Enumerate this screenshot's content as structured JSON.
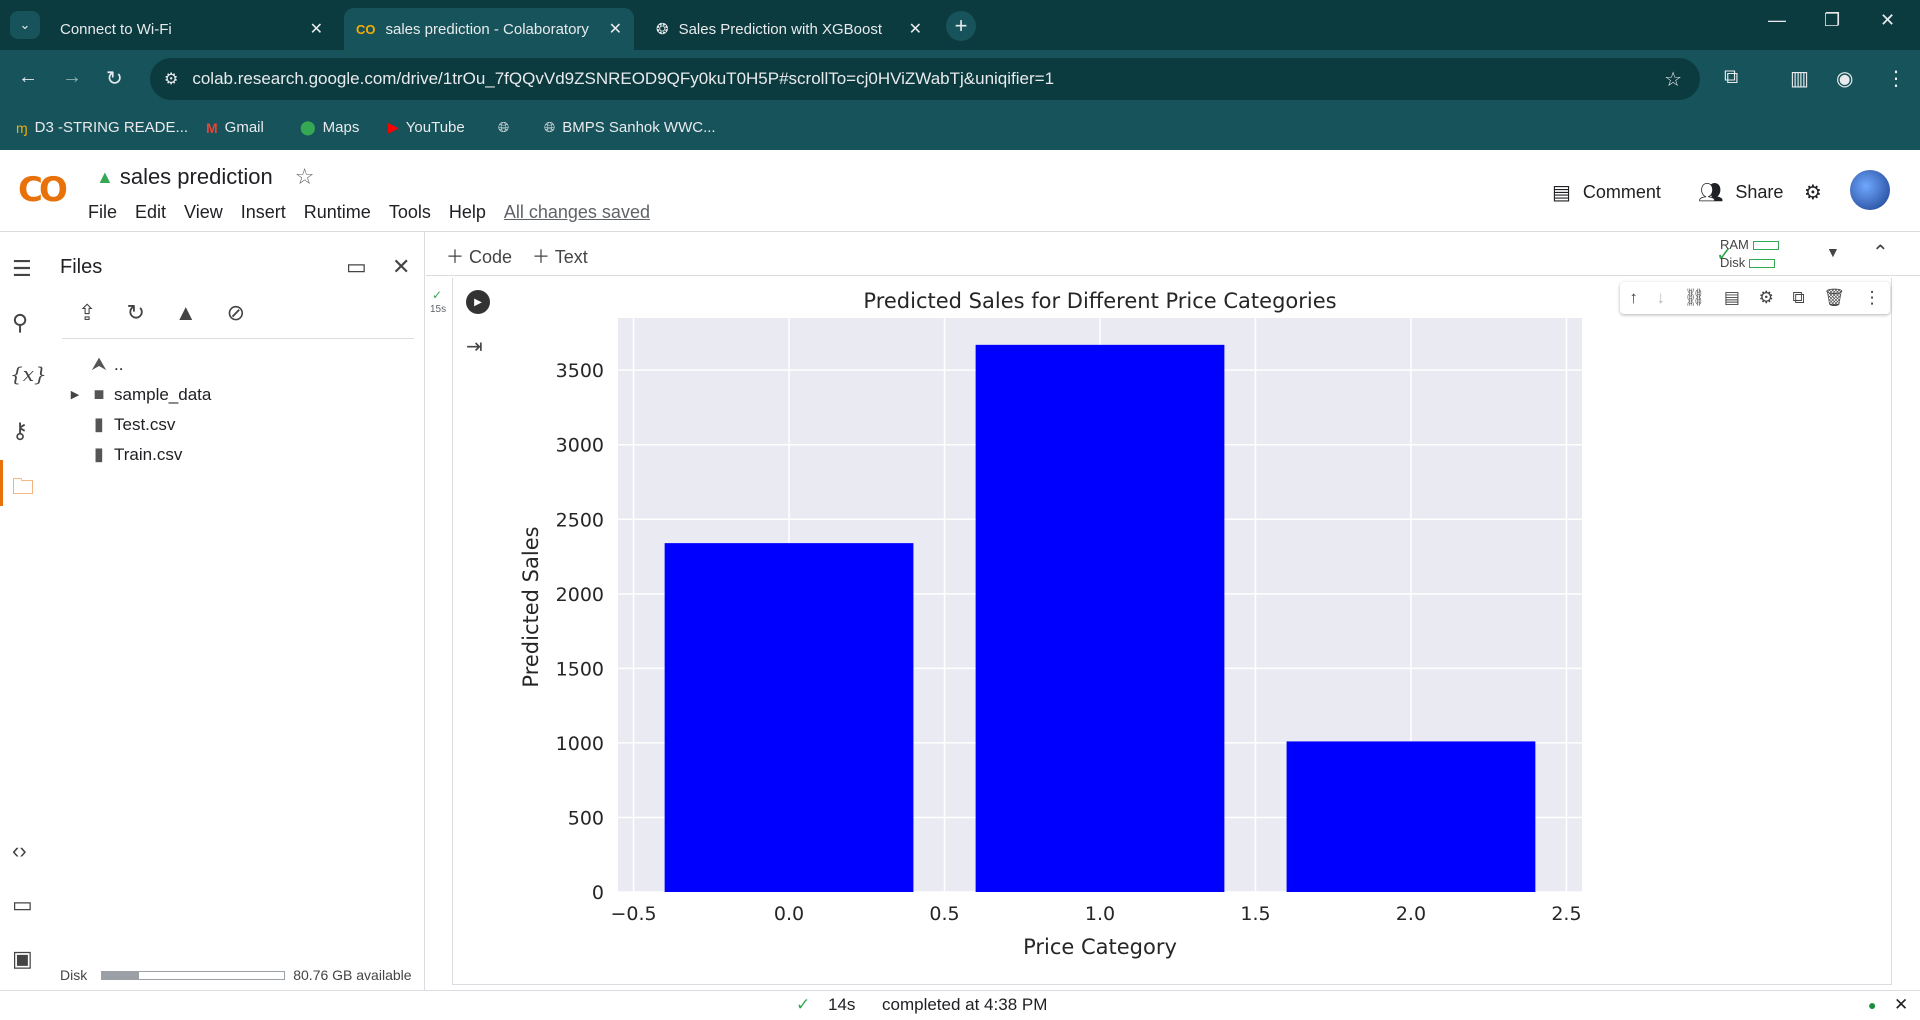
{
  "browser": {
    "tabs": [
      {
        "title": "Connect to Wi-Fi"
      },
      {
        "title": "sales prediction - Colaboratory"
      },
      {
        "title": "Sales Prediction with XGBoost"
      }
    ],
    "url": "colab.research.google.com/drive/1trOu_7fQQvVd9ZSNREOD9QFy0kuT0H5P#scrollTo=cj0HViZWabTj&uniqifier=1",
    "bookmarks": [
      {
        "label": "D3 -STRING READE..."
      },
      {
        "label": "Gmail"
      },
      {
        "label": "Maps"
      },
      {
        "label": "YouTube"
      },
      {
        "label": "BMPS Sanhok WWC..."
      }
    ]
  },
  "colab": {
    "logo": "CO",
    "notebook_title": "sales prediction",
    "menu": [
      "File",
      "Edit",
      "View",
      "Insert",
      "Runtime",
      "Tools",
      "Help"
    ],
    "saved_status": "All changes saved",
    "comment_label": "Comment",
    "share_label": "Share"
  },
  "files_panel": {
    "title": "Files",
    "tree": [
      {
        "label": ".."
      },
      {
        "label": "sample_data"
      },
      {
        "label": "Test.csv"
      },
      {
        "label": "Train.csv"
      }
    ],
    "disk_label": "Disk",
    "disk_available": "80.76 GB available",
    "disk_used_fraction": 0.2
  },
  "notebook_toolbar": {
    "add_code": "Code",
    "add_text": "Text",
    "ram_label": "RAM",
    "disk_label": "Disk"
  },
  "cell": {
    "exec_time": "15s"
  },
  "chart_data": {
    "type": "bar",
    "title": "Predicted Sales for Different Price Categories",
    "xlabel": "Price Category",
    "ylabel": "Predicted Sales",
    "categories": [
      0.0,
      1.0,
      2.0
    ],
    "values": [
      2340,
      3670,
      1010
    ],
    "bar_width": 0.8,
    "bar_color": "#0000ff",
    "xlim": [
      -0.55,
      2.55
    ],
    "ylim": [
      0,
      3850
    ],
    "xticks": [
      "−0.5",
      "0.0",
      "0.5",
      "1.0",
      "1.5",
      "2.0",
      "2.5"
    ],
    "xtick_values": [
      -0.5,
      0.0,
      0.5,
      1.0,
      1.5,
      2.0,
      2.5
    ],
    "yticks": [
      0,
      500,
      1000,
      1500,
      2000,
      2500,
      3000,
      3500
    ],
    "grid": true,
    "background": "#eaeaf2"
  },
  "status": {
    "duration": "14s",
    "message": "completed at 4:38 PM"
  }
}
